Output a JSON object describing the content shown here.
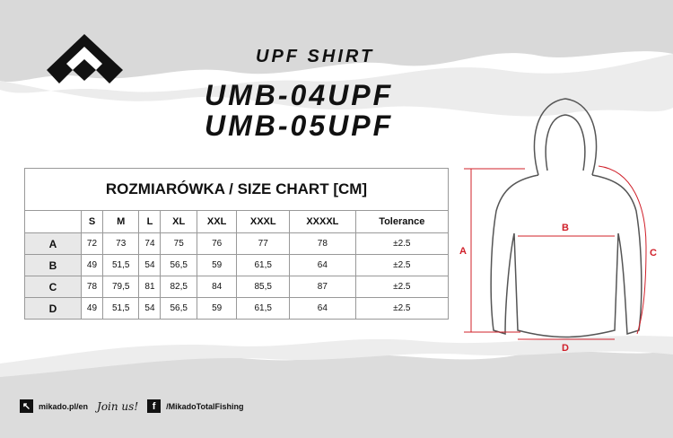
{
  "header": {
    "product_type": "UPF SHIRT",
    "model_1": "UMB-04UPF",
    "model_2": "UMB-05UPF"
  },
  "brand": {
    "logo": "mikado-logo",
    "name": "Mikado"
  },
  "table": {
    "title": "ROZMIARÓWKA / SIZE CHART [CM]",
    "columns": [
      "S",
      "M",
      "L",
      "XL",
      "XXL",
      "XXXL",
      "XXXXL",
      "Tolerance"
    ],
    "rows": [
      {
        "label": "A",
        "values": [
          "72",
          "73",
          "74",
          "75",
          "76",
          "77",
          "78",
          "±2.5"
        ]
      },
      {
        "label": "B",
        "values": [
          "49",
          "51,5",
          "54",
          "56,5",
          "59",
          "61,5",
          "64",
          "±2.5"
        ]
      },
      {
        "label": "C",
        "values": [
          "78",
          "79,5",
          "81",
          "82,5",
          "84",
          "85,5",
          "87",
          "±2.5"
        ]
      },
      {
        "label": "D",
        "values": [
          "49",
          "51,5",
          "54",
          "56,5",
          "59",
          "61,5",
          "64",
          "±2.5"
        ]
      }
    ]
  },
  "diagram": {
    "labels": {
      "a": "A",
      "b": "B",
      "c": "C",
      "d": "D"
    },
    "accent": "#d0202a"
  },
  "footer": {
    "website": "mikado.pl/en",
    "join": "Join us!",
    "facebook": "/MikadoTotalFishing"
  }
}
